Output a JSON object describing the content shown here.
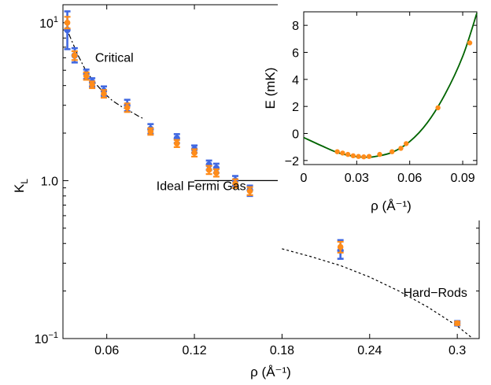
{
  "chart_data": [
    {
      "type": "scatter",
      "title": "",
      "xlabel": "ρ (Å⁻¹)",
      "ylabel": "K_L",
      "ylabel_main": "K",
      "ylabel_sub": "L",
      "xlim": [
        0.03,
        0.315
      ],
      "ylim": [
        0.1,
        13
      ],
      "yscale": "log",
      "x_ticks": [
        0.06,
        0.12,
        0.18,
        0.24,
        0.3
      ],
      "x_tick_labels": [
        "0.06",
        "0.12",
        "0.18",
        "0.24",
        "0.3"
      ],
      "y_ticks": [
        0.1,
        1,
        10
      ],
      "y_tick_labels": [
        {
          "base": "10",
          "exp": "−1"
        },
        {
          "base": "10",
          "exp": ""
        },
        {
          "base": "10",
          "exp": "1"
        }
      ],
      "y_tick_label_plain": "1.0",
      "grid": false,
      "series": [
        {
          "color": "#4169e1",
          "marker": "circle",
          "x": [
            0.033,
            0.038,
            0.046,
            0.05,
            0.058,
            0.074,
            0.09,
            0.108,
            0.12,
            0.13,
            0.135,
            0.148,
            0.158,
            0.22,
            0.3
          ],
          "y": [
            9.0,
            6.2,
            4.75,
            4.2,
            3.7,
            3.0,
            2.12,
            1.85,
            1.58,
            1.26,
            1.2,
            1.0,
            0.87,
            0.36,
            0.125
          ],
          "err_lo": [
            6.8,
            5.6,
            4.4,
            3.95,
            3.45,
            2.75,
            1.98,
            1.73,
            1.5,
            1.17,
            1.12,
            0.93,
            0.8,
            0.32,
            0.121
          ],
          "err_hi": [
            11.8,
            6.9,
            5.05,
            4.45,
            3.95,
            3.25,
            2.28,
            1.97,
            1.67,
            1.34,
            1.28,
            1.07,
            0.93,
            0.42,
            0.129
          ]
        },
        {
          "color": "#ff8c1a",
          "marker": "circle",
          "x": [
            0.033,
            0.038,
            0.046,
            0.05,
            0.058,
            0.074,
            0.09,
            0.108,
            0.12,
            0.13,
            0.135,
            0.148,
            0.158,
            0.22,
            0.3
          ],
          "y": [
            10.0,
            6.2,
            4.6,
            4.05,
            3.55,
            2.9,
            2.05,
            1.72,
            1.5,
            1.17,
            1.12,
            0.96,
            0.86,
            0.38,
            0.125
          ],
          "err_lo": [
            9.2,
            5.8,
            4.35,
            3.85,
            3.35,
            2.72,
            1.95,
            1.63,
            1.42,
            1.1,
            1.06,
            0.9,
            0.81,
            0.35,
            0.122
          ],
          "err_hi": [
            10.9,
            6.6,
            4.85,
            4.25,
            3.75,
            3.08,
            2.15,
            1.81,
            1.58,
            1.24,
            1.18,
            1.02,
            0.91,
            0.41,
            0.128
          ]
        }
      ],
      "curves": [
        {
          "label": "Critical",
          "style": "dash-dot",
          "x": [
            0.034,
            0.04,
            0.046,
            0.052,
            0.058,
            0.064,
            0.07,
            0.076,
            0.082,
            0.086
          ],
          "y": [
            8.5,
            6.3,
            4.9,
            4.15,
            3.6,
            3.2,
            2.95,
            2.75,
            2.55,
            2.45
          ]
        },
        {
          "label": "Ideal Fermi Gas",
          "style": "solid",
          "x": [
            0.12,
            0.18
          ],
          "y": [
            1.0,
            1.0
          ]
        },
        {
          "label": "Hard−Rods",
          "style": "dotted",
          "x": [
            0.18,
            0.2,
            0.22,
            0.24,
            0.26,
            0.28,
            0.3,
            0.31
          ],
          "y": [
            0.37,
            0.33,
            0.29,
            0.245,
            0.2,
            0.158,
            0.12,
            0.101
          ]
        }
      ],
      "annotations": [
        {
          "text": "Critical",
          "x": 0.052,
          "y": 6.0
        },
        {
          "text": "Ideal Fermi Gas",
          "x": 0.094,
          "y": 0.92
        },
        {
          "text": "Hard−Rods",
          "x": 0.263,
          "y": 0.195
        }
      ]
    },
    {
      "type": "scatter",
      "title": "",
      "xlabel": "ρ (Å⁻¹)",
      "ylabel": "E (mK)",
      "xlim": [
        0.0,
        0.098
      ],
      "ylim": [
        -2.3,
        9.0
      ],
      "x_ticks": [
        0,
        0.03,
        0.06,
        0.09
      ],
      "x_tick_labels": [
        "0",
        "0.03",
        "0.06",
        "0.09"
      ],
      "y_ticks": [
        -2,
        0,
        2,
        4,
        6,
        8
      ],
      "y_tick_labels": [
        "−2",
        "0",
        "2",
        "4",
        "6",
        "8"
      ],
      "grid": false,
      "series": [
        {
          "color": "#ff8c1a",
          "marker": "circle",
          "x": [
            0.019,
            0.022,
            0.025,
            0.028,
            0.031,
            0.034,
            0.037,
            0.043,
            0.05,
            0.055,
            0.058,
            0.076,
            0.094
          ],
          "y": [
            -1.35,
            -1.45,
            -1.55,
            -1.65,
            -1.7,
            -1.73,
            -1.7,
            -1.55,
            -1.35,
            -1.1,
            -0.75,
            1.9,
            6.7
          ]
        }
      ],
      "fit_curve": {
        "color": "#006400",
        "x": [
          0.0,
          0.01,
          0.02,
          0.03,
          0.035,
          0.04,
          0.05,
          0.06,
          0.07,
          0.08,
          0.09,
          0.098
        ],
        "y": [
          -0.3,
          -0.9,
          -1.45,
          -1.72,
          -1.76,
          -1.72,
          -1.4,
          -0.6,
          0.8,
          2.9,
          5.7,
          8.9
        ]
      }
    }
  ]
}
